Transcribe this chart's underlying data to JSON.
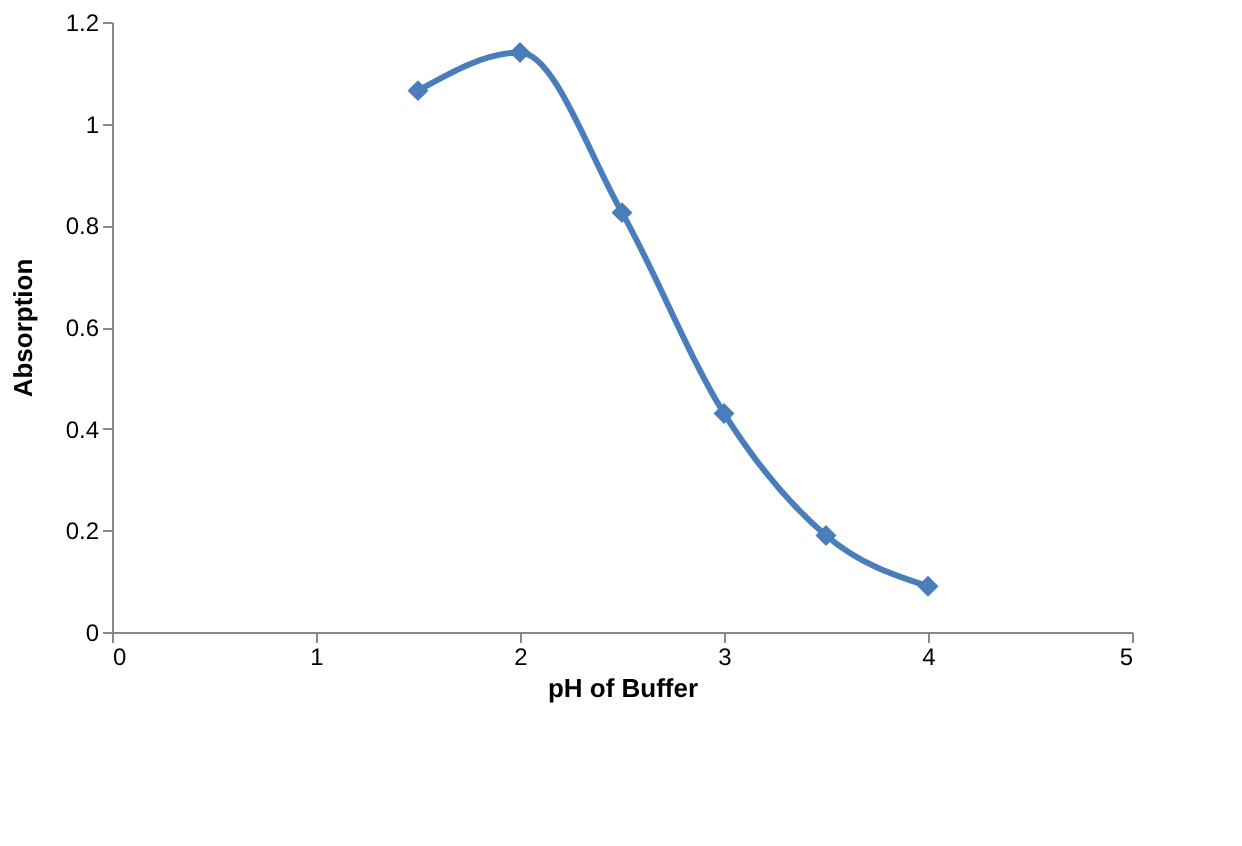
{
  "chart_data": {
    "type": "line",
    "xlabel": "pH of Buffer",
    "ylabel": "Absorption",
    "x": [
      1.5,
      2,
      2.5,
      3,
      3.5,
      4
    ],
    "series": [
      {
        "color": "#4a7ebb",
        "values": [
          1.065,
          1.14,
          0.825,
          0.43,
          0.19,
          0.09
        ]
      }
    ],
    "xlim": [
      0,
      5
    ],
    "xticks": [
      0,
      1,
      2,
      3,
      4,
      5
    ],
    "ylim": [
      0,
      1.2
    ],
    "yticks": [
      0,
      0.2,
      0.4,
      0.6,
      0.8,
      1,
      1.2
    ],
    "grid": false,
    "marker": "diamond",
    "line_style": "solid"
  }
}
